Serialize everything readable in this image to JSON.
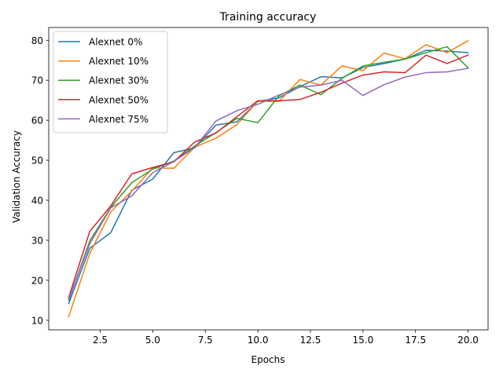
{
  "chart_data": {
    "type": "line",
    "title": "Training accuracy",
    "xlabel": "Epochs",
    "ylabel": "Validation Accuracy",
    "xlim": [
      0.05,
      20.95
    ],
    "ylim": [
      7.6,
      83.2
    ],
    "x_ticks": [
      2.5,
      5.0,
      7.5,
      10.0,
      12.5,
      15.0,
      17.5,
      20.0
    ],
    "x_tick_labels": [
      "2.5",
      "5.0",
      "7.5",
      "10.0",
      "12.5",
      "15.0",
      "17.5",
      "20.0"
    ],
    "y_ticks": [
      10,
      20,
      30,
      40,
      50,
      60,
      70,
      80
    ],
    "y_tick_labels": [
      "10",
      "20",
      "30",
      "40",
      "50",
      "60",
      "70",
      "80"
    ],
    "grid": false,
    "legend_position": "top-left",
    "x": [
      1,
      2,
      3,
      4,
      5,
      6,
      7,
      8,
      9,
      10,
      11,
      12,
      13,
      14,
      15,
      16,
      17,
      18,
      19,
      20
    ],
    "series": [
      {
        "name": "Alexnet 0%",
        "color": "#1f77b4",
        "values": [
          14.2,
          28.0,
          31.9,
          42.5,
          45.3,
          51.9,
          53.1,
          58.8,
          59.6,
          64.7,
          65.6,
          68.4,
          70.9,
          70.6,
          73.2,
          74.2,
          75.3,
          77.5,
          77.3,
          76.9
        ]
      },
      {
        "name": "Alexnet 10%",
        "color": "#ff7f0e",
        "values": [
          10.9,
          26.7,
          37.1,
          42.3,
          48.1,
          48.0,
          53.3,
          55.5,
          58.9,
          64.8,
          64.7,
          70.2,
          68.8,
          73.6,
          72.4,
          76.8,
          75.4,
          78.9,
          76.9,
          79.9
        ]
      },
      {
        "name": "Alexnet 30%",
        "color": "#2ca02c",
        "values": [
          15.0,
          29.8,
          38.2,
          44.4,
          47.8,
          49.8,
          53.6,
          56.9,
          60.5,
          59.4,
          66.1,
          68.8,
          66.4,
          70.5,
          73.6,
          74.5,
          75.3,
          76.9,
          78.4,
          73.1
        ]
      },
      {
        "name": "Alexnet 50%",
        "color": "#d62728",
        "values": [
          15.7,
          32.2,
          38.6,
          46.6,
          48.2,
          49.6,
          54.6,
          56.8,
          60.9,
          64.9,
          64.9,
          65.2,
          67.0,
          69.3,
          71.3,
          72.1,
          71.9,
          76.3,
          74.2,
          76.3
        ]
      },
      {
        "name": "Alexnet 75%",
        "color": "#9467bd",
        "values": [
          15.3,
          29.1,
          38.1,
          41.1,
          46.9,
          49.7,
          53.2,
          59.8,
          62.4,
          64.0,
          66.3,
          68.3,
          68.8,
          70.0,
          66.2,
          68.9,
          70.8,
          71.9,
          72.1,
          73.0
        ]
      }
    ]
  }
}
